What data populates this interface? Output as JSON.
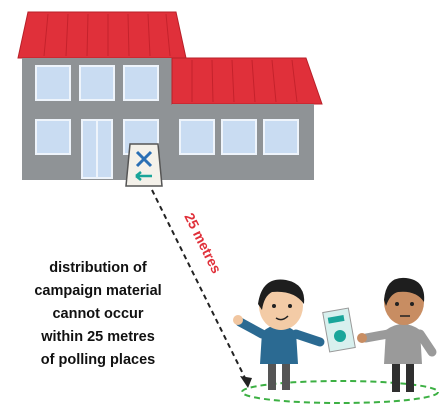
{
  "sign_label": "25 metres",
  "caption": {
    "lines": [
      "distribution of",
      "campaign material",
      "cannot occur",
      "within 25 metres",
      "of polling places"
    ]
  }
}
